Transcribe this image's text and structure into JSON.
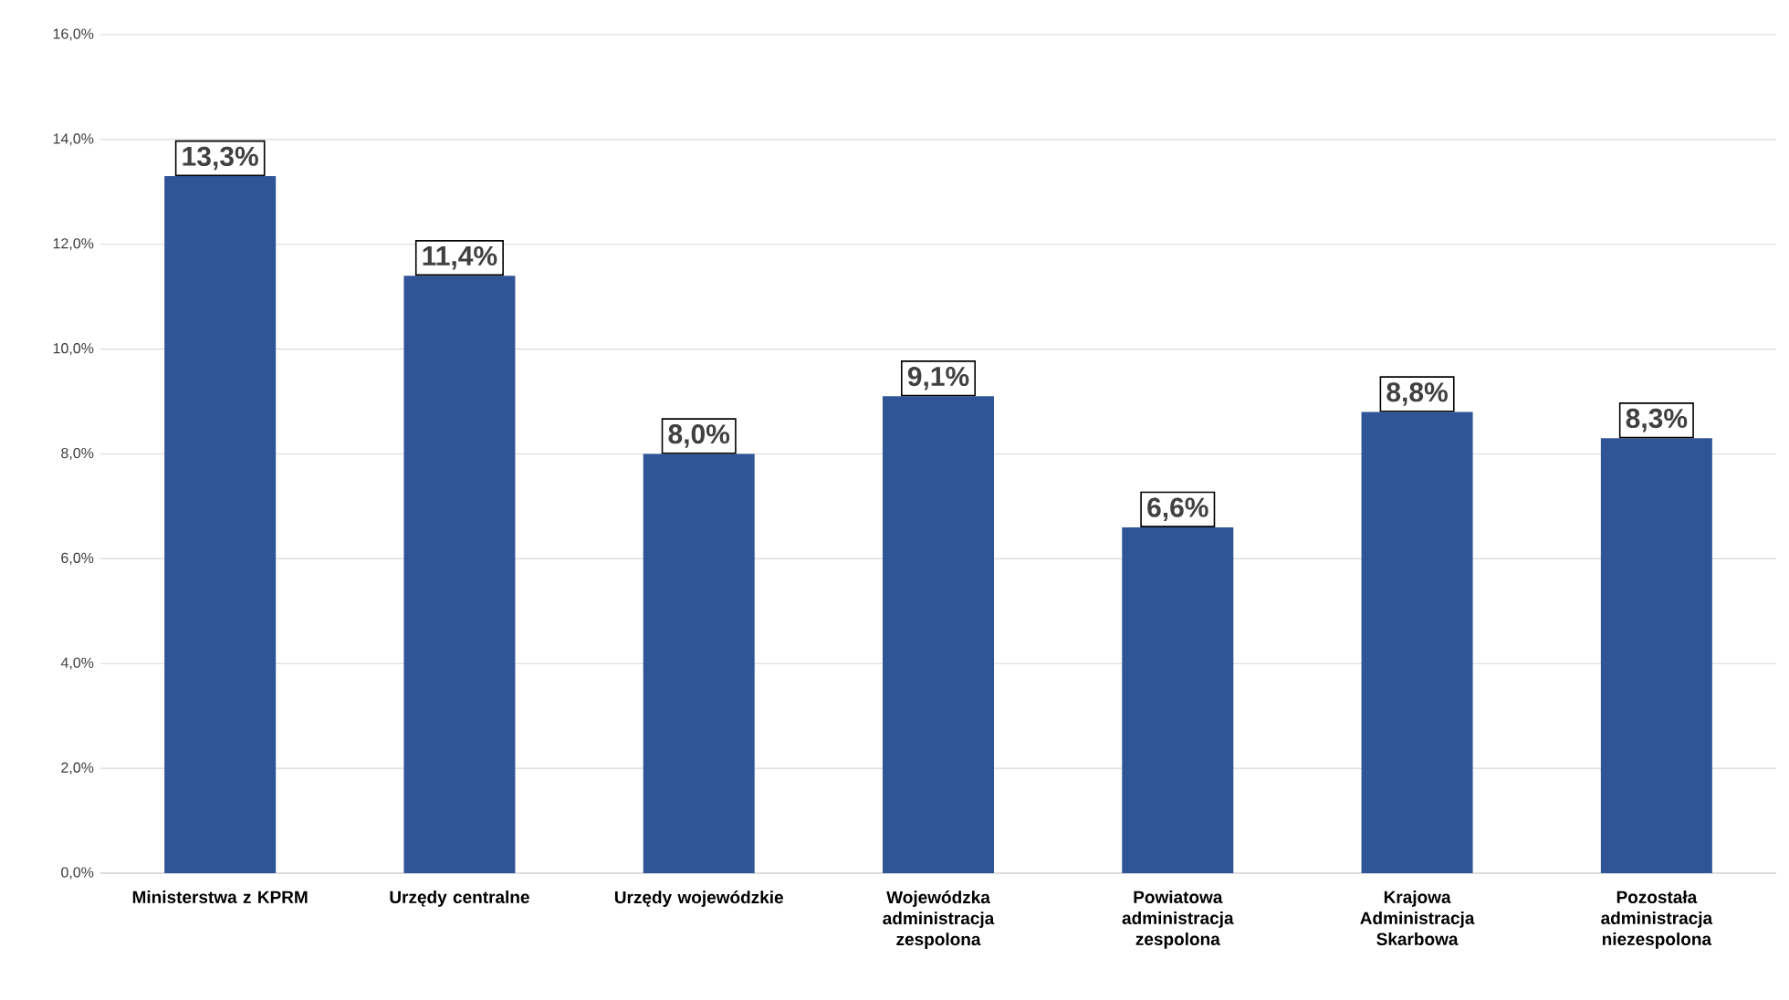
{
  "chart_data": {
    "type": "bar",
    "categories": [
      "Ministerstwa z KPRM",
      "Urzędy centralne",
      "Urzędy wojewódzkie",
      "Wojewódzka administracja zespolona",
      "Powiatowa administracja zespolona",
      "Krajowa Administracja Skarbowa",
      "Pozostała administracja niezespolona"
    ],
    "values": [
      13.3,
      11.4,
      8.0,
      9.1,
      6.6,
      8.8,
      8.3
    ],
    "value_labels": [
      "13,3%",
      "11,4%",
      "8,0%",
      "9,1%",
      "6,6%",
      "8,8%",
      "8,3%"
    ],
    "color": "#2f5597",
    "ylim": [
      0,
      16
    ],
    "yticks": [
      {
        "value": 0,
        "label": "0,0%"
      },
      {
        "value": 2,
        "label": "2,0%"
      },
      {
        "value": 4,
        "label": "4,0%"
      },
      {
        "value": 6,
        "label": "6,0%"
      },
      {
        "value": 8,
        "label": "8,0%"
      },
      {
        "value": 10,
        "label": "10,0%"
      },
      {
        "value": 12,
        "label": "12,0%"
      },
      {
        "value": 14,
        "label": "14,0%"
      },
      {
        "value": 16,
        "label": "16,0%"
      }
    ],
    "grid": "y"
  }
}
